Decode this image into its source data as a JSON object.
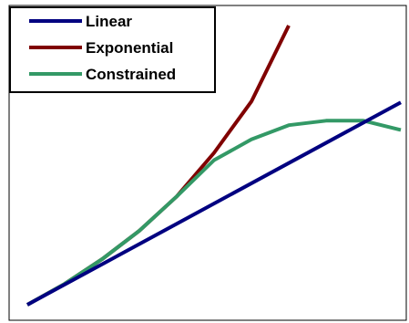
{
  "chart_data": {
    "type": "line",
    "title": "",
    "xlabel": "",
    "ylabel": "",
    "x": [
      0,
      1,
      2,
      3,
      4,
      5,
      6,
      7,
      8,
      9,
      10
    ],
    "xlim": [
      0,
      10
    ],
    "ylim": [
      0,
      1
    ],
    "grid": false,
    "legend_position": "top-left",
    "series": [
      {
        "name": "Linear",
        "color": "#000080",
        "x": [
          0,
          10
        ],
        "values": [
          0.0,
          0.725
        ]
      },
      {
        "name": "Exponential",
        "color": "#800000",
        "x": [
          0,
          1,
          2,
          3,
          4,
          5,
          6,
          7
        ],
        "values": [
          0.0,
          0.075,
          0.163,
          0.265,
          0.388,
          0.544,
          0.728,
          1.0
        ]
      },
      {
        "name": "Constrained",
        "color": "#339966",
        "x": [
          0,
          1,
          2,
          3,
          4,
          5,
          6,
          7,
          8,
          9,
          10
        ],
        "values": [
          0.0,
          0.075,
          0.163,
          0.265,
          0.388,
          0.518,
          0.592,
          0.643,
          0.659,
          0.659,
          0.626
        ]
      }
    ]
  }
}
